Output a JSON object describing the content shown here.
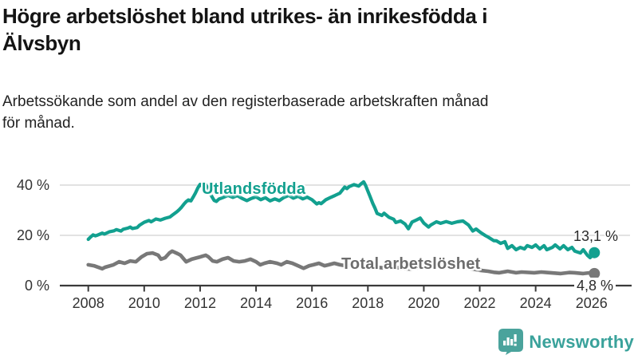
{
  "header": {
    "title_lines": [
      "Högre arbetslöshet bland utrikes- än inrikesfödda i",
      "Älvsbyn"
    ],
    "subtitle_lines": [
      "Arbetssökande som andel av den registerbaserade arbetskraften månad",
      "för månad."
    ]
  },
  "chart_data": {
    "type": "line",
    "title": "Högre arbetslöshet bland utrikes- än inrikesfödda i Älvsbyn",
    "subtitle": "Arbetssökande som andel av den registerbaserade arbetskraften månad för månad.",
    "unit": "%",
    "grid": "horizontal-only",
    "legend_position": "inline-labels",
    "x_axis": {
      "ticks": [
        2008,
        2010,
        2012,
        2014,
        2016,
        2018,
        2020,
        2022,
        2024,
        2026
      ],
      "range": [
        2007.0,
        2026.6
      ]
    },
    "y_axis": {
      "ticks": [
        {
          "value": 0,
          "label": "0 %"
        },
        {
          "value": 20,
          "label": "20 %"
        },
        {
          "value": 40,
          "label": "40 %"
        }
      ],
      "range": [
        0,
        44
      ],
      "gridlines": [
        20,
        40
      ]
    },
    "series": [
      {
        "name": "Utlandsfödda",
        "color": "#12a08f",
        "end_label": "13,1 %",
        "end_value": 13.1,
        "points": [
          [
            2008.0,
            18.4
          ],
          [
            2008.08,
            19.3
          ],
          [
            2008.17,
            20.2
          ],
          [
            2008.25,
            19.8
          ],
          [
            2008.33,
            20.1
          ],
          [
            2008.5,
            20.9
          ],
          [
            2008.58,
            20.5
          ],
          [
            2008.75,
            21.4
          ],
          [
            2008.92,
            21.8
          ],
          [
            2009.0,
            22.3
          ],
          [
            2009.17,
            21.7
          ],
          [
            2009.25,
            22.4
          ],
          [
            2009.42,
            22.9
          ],
          [
            2009.5,
            23.3
          ],
          [
            2009.58,
            22.7
          ],
          [
            2009.75,
            23.1
          ],
          [
            2009.83,
            24.0
          ],
          [
            2010.0,
            25.2
          ],
          [
            2010.17,
            25.9
          ],
          [
            2010.25,
            25.4
          ],
          [
            2010.42,
            26.5
          ],
          [
            2010.58,
            26.1
          ],
          [
            2010.75,
            26.8
          ],
          [
            2010.92,
            27.3
          ],
          [
            2011.0,
            28.0
          ],
          [
            2011.17,
            29.4
          ],
          [
            2011.25,
            30.2
          ],
          [
            2011.33,
            31.1
          ],
          [
            2011.42,
            32.4
          ],
          [
            2011.5,
            33.4
          ],
          [
            2011.58,
            34.1
          ],
          [
            2011.67,
            33.7
          ],
          [
            2011.75,
            35.2
          ],
          [
            2011.83,
            36.8
          ],
          [
            2011.92,
            38.9
          ],
          [
            2012.0,
            40.3
          ],
          [
            2012.08,
            39.5
          ],
          [
            2012.17,
            40.6
          ],
          [
            2012.25,
            39.2
          ],
          [
            2012.33,
            37.1
          ],
          [
            2012.42,
            35.4
          ],
          [
            2012.5,
            33.9
          ],
          [
            2012.58,
            33.5
          ],
          [
            2012.67,
            34.4
          ],
          [
            2012.83,
            35.1
          ],
          [
            2013.0,
            35.9
          ],
          [
            2013.17,
            35.1
          ],
          [
            2013.33,
            35.8
          ],
          [
            2013.5,
            34.7
          ],
          [
            2013.67,
            33.8
          ],
          [
            2013.83,
            34.7
          ],
          [
            2014.0,
            35.3
          ],
          [
            2014.17,
            34.2
          ],
          [
            2014.33,
            35.0
          ],
          [
            2014.5,
            33.7
          ],
          [
            2014.67,
            34.5
          ],
          [
            2014.83,
            33.8
          ],
          [
            2015.0,
            35.1
          ],
          [
            2015.17,
            35.9
          ],
          [
            2015.33,
            34.8
          ],
          [
            2015.5,
            35.6
          ],
          [
            2015.67,
            34.5
          ],
          [
            2015.83,
            35.2
          ],
          [
            2016.0,
            34.2
          ],
          [
            2016.17,
            32.5
          ],
          [
            2016.25,
            33.0
          ],
          [
            2016.33,
            32.6
          ],
          [
            2016.5,
            34.2
          ],
          [
            2016.67,
            35.1
          ],
          [
            2016.83,
            35.9
          ],
          [
            2017.0,
            36.8
          ],
          [
            2017.08,
            37.9
          ],
          [
            2017.17,
            39.2
          ],
          [
            2017.25,
            38.6
          ],
          [
            2017.33,
            39.4
          ],
          [
            2017.5,
            40.2
          ],
          [
            2017.67,
            39.6
          ],
          [
            2017.75,
            40.4
          ],
          [
            2017.85,
            41.3
          ],
          [
            2017.92,
            39.8
          ],
          [
            2018.0,
            37.6
          ],
          [
            2018.08,
            35.4
          ],
          [
            2018.17,
            32.8
          ],
          [
            2018.25,
            30.9
          ],
          [
            2018.33,
            28.7
          ],
          [
            2018.5,
            27.9
          ],
          [
            2018.58,
            28.8
          ],
          [
            2018.75,
            27.2
          ],
          [
            2018.92,
            26.4
          ],
          [
            2019.0,
            25.1
          ],
          [
            2019.17,
            25.7
          ],
          [
            2019.33,
            24.5
          ],
          [
            2019.45,
            22.6
          ],
          [
            2019.58,
            25.3
          ],
          [
            2019.75,
            26.2
          ],
          [
            2019.87,
            26.9
          ],
          [
            2020.0,
            24.9
          ],
          [
            2020.17,
            23.3
          ],
          [
            2020.25,
            24.1
          ],
          [
            2020.45,
            25.4
          ],
          [
            2020.6,
            24.8
          ],
          [
            2020.8,
            25.5
          ],
          [
            2021.0,
            24.8
          ],
          [
            2021.2,
            25.4
          ],
          [
            2021.4,
            25.7
          ],
          [
            2021.6,
            24.1
          ],
          [
            2021.75,
            21.7
          ],
          [
            2021.87,
            22.5
          ],
          [
            2022.05,
            21.0
          ],
          [
            2022.2,
            19.9
          ],
          [
            2022.3,
            19.3
          ],
          [
            2022.5,
            17.9
          ],
          [
            2022.6,
            17.8
          ],
          [
            2022.75,
            16.8
          ],
          [
            2022.9,
            17.5
          ],
          [
            2023.0,
            14.8
          ],
          [
            2023.15,
            15.9
          ],
          [
            2023.3,
            14.3
          ],
          [
            2023.45,
            15.2
          ],
          [
            2023.6,
            14.6
          ],
          [
            2023.7,
            15.9
          ],
          [
            2023.87,
            15.2
          ],
          [
            2024.0,
            16.2
          ],
          [
            2024.15,
            14.6
          ],
          [
            2024.3,
            15.9
          ],
          [
            2024.4,
            14.3
          ],
          [
            2024.6,
            15.2
          ],
          [
            2024.7,
            16.2
          ],
          [
            2024.87,
            14.6
          ],
          [
            2025.0,
            15.9
          ],
          [
            2025.15,
            14.3
          ],
          [
            2025.3,
            15.2
          ],
          [
            2025.4,
            13.7
          ],
          [
            2025.6,
            13.0
          ],
          [
            2025.7,
            14.3
          ],
          [
            2025.85,
            12.1
          ],
          [
            2025.95,
            11.1
          ],
          [
            2026.1,
            13.1
          ]
        ]
      },
      {
        "name": "Total arbetslöshet",
        "color": "#787878",
        "end_label": "4,8 %",
        "end_value": 4.8,
        "points": [
          [
            2008.0,
            8.3
          ],
          [
            2008.2,
            7.9
          ],
          [
            2008.4,
            7.1
          ],
          [
            2008.5,
            6.7
          ],
          [
            2008.6,
            7.3
          ],
          [
            2008.9,
            8.3
          ],
          [
            2009.1,
            9.5
          ],
          [
            2009.3,
            8.9
          ],
          [
            2009.5,
            9.8
          ],
          [
            2009.7,
            9.5
          ],
          [
            2009.9,
            11.4
          ],
          [
            2010.1,
            12.7
          ],
          [
            2010.3,
            13.0
          ],
          [
            2010.5,
            12.1
          ],
          [
            2010.6,
            10.5
          ],
          [
            2010.75,
            11.1
          ],
          [
            2010.9,
            13.0
          ],
          [
            2011.0,
            13.7
          ],
          [
            2011.2,
            12.7
          ],
          [
            2011.3,
            12.1
          ],
          [
            2011.5,
            9.5
          ],
          [
            2011.7,
            10.5
          ],
          [
            2011.9,
            11.1
          ],
          [
            2012.0,
            11.4
          ],
          [
            2012.2,
            12.1
          ],
          [
            2012.3,
            11.4
          ],
          [
            2012.45,
            9.8
          ],
          [
            2012.6,
            9.5
          ],
          [
            2012.8,
            10.5
          ],
          [
            2013.0,
            11.1
          ],
          [
            2013.2,
            9.8
          ],
          [
            2013.4,
            9.5
          ],
          [
            2013.6,
            9.8
          ],
          [
            2013.8,
            10.5
          ],
          [
            2014.0,
            9.5
          ],
          [
            2014.15,
            8.3
          ],
          [
            2014.3,
            8.9
          ],
          [
            2014.5,
            9.5
          ],
          [
            2014.75,
            8.9
          ],
          [
            2014.9,
            8.3
          ],
          [
            2015.1,
            9.5
          ],
          [
            2015.3,
            8.9
          ],
          [
            2015.5,
            7.9
          ],
          [
            2015.7,
            6.9
          ],
          [
            2015.9,
            7.9
          ],
          [
            2016.05,
            8.3
          ],
          [
            2016.25,
            8.9
          ],
          [
            2016.45,
            7.9
          ],
          [
            2016.6,
            8.3
          ],
          [
            2016.8,
            8.9
          ],
          [
            2017.0,
            8.3
          ],
          [
            2017.2,
            7.9
          ],
          [
            2017.5,
            8.4
          ],
          [
            2017.8,
            8.0
          ],
          [
            2018.0,
            7.8
          ],
          [
            2018.3,
            7.3
          ],
          [
            2018.6,
            7.0
          ],
          [
            2018.9,
            7.4
          ],
          [
            2019.2,
            6.9
          ],
          [
            2019.5,
            6.6
          ],
          [
            2019.8,
            7.1
          ],
          [
            2020.0,
            7.6
          ],
          [
            2020.3,
            9.0
          ],
          [
            2020.6,
            8.7
          ],
          [
            2020.9,
            8.2
          ],
          [
            2021.2,
            7.6
          ],
          [
            2021.5,
            7.0
          ],
          [
            2021.8,
            6.5
          ],
          [
            2022.0,
            6.1
          ],
          [
            2022.3,
            5.7
          ],
          [
            2022.5,
            5.3
          ],
          [
            2022.7,
            5.1
          ],
          [
            2023.0,
            5.7
          ],
          [
            2023.3,
            5.1
          ],
          [
            2023.5,
            5.4
          ],
          [
            2023.95,
            5.1
          ],
          [
            2024.2,
            5.4
          ],
          [
            2024.4,
            5.2
          ],
          [
            2024.9,
            4.8
          ],
          [
            2025.2,
            5.2
          ],
          [
            2025.4,
            5.1
          ],
          [
            2025.7,
            4.8
          ],
          [
            2025.95,
            5.1
          ],
          [
            2026.1,
            4.8
          ]
        ]
      }
    ]
  },
  "branding": {
    "wordmark": "Newsworthy",
    "logo_icon": "speech-bubble-bar-chart",
    "brand_color": "#3aa29b"
  }
}
